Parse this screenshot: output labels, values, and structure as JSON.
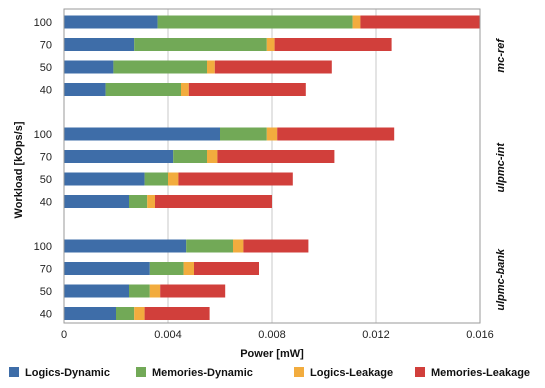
{
  "chart_data": {
    "type": "bar",
    "orientation": "horizontal",
    "stacked": true,
    "title": "",
    "xlabel": "Power [mW]",
    "ylabel": "Workload [kOps/s]",
    "xlim": [
      0,
      0.016
    ],
    "xticks": [
      "0",
      "0.004",
      "0.008",
      "0.012",
      "0.016"
    ],
    "xtick_values": [
      0,
      0.004,
      0.008,
      0.012,
      0.016
    ],
    "grid": "vertical",
    "legend_position": "bottom",
    "series": [
      {
        "name": "Logics-Dynamic",
        "color": "#3e6da8"
      },
      {
        "name": "Memories-Dynamic",
        "color": "#72a957"
      },
      {
        "name": "Logics-Leakage",
        "color": "#f2ac3e"
      },
      {
        "name": "Memories-Leakage",
        "color": "#d13f3b"
      }
    ],
    "groups": [
      {
        "name": "mc-ref",
        "bars": [
          {
            "workload": "100",
            "values": [
              0.0036,
              0.0075,
              0.0003,
              0.0046
            ]
          },
          {
            "workload": "70",
            "values": [
              0.0027,
              0.0051,
              0.0003,
              0.0045
            ]
          },
          {
            "workload": "50",
            "values": [
              0.0019,
              0.0036,
              0.0003,
              0.0045
            ]
          },
          {
            "workload": "40",
            "values": [
              0.0016,
              0.0029,
              0.0003,
              0.0045
            ]
          }
        ]
      },
      {
        "name": "ulpmc-int",
        "bars": [
          {
            "workload": "100",
            "values": [
              0.006,
              0.0018,
              0.0004,
              0.0045
            ]
          },
          {
            "workload": "70",
            "values": [
              0.0042,
              0.0013,
              0.0004,
              0.0045
            ]
          },
          {
            "workload": "50",
            "values": [
              0.0031,
              0.0009,
              0.0004,
              0.0044
            ]
          },
          {
            "workload": "40",
            "values": [
              0.0025,
              0.0007,
              0.0003,
              0.0045
            ]
          }
        ]
      },
      {
        "name": "ulpmc-bank",
        "bars": [
          {
            "workload": "100",
            "values": [
              0.0047,
              0.0018,
              0.0004,
              0.0025
            ]
          },
          {
            "workload": "70",
            "values": [
              0.0033,
              0.0013,
              0.0004,
              0.0025
            ]
          },
          {
            "workload": "50",
            "values": [
              0.0025,
              0.0008,
              0.0004,
              0.0025
            ]
          },
          {
            "workload": "40",
            "values": [
              0.002,
              0.0007,
              0.0004,
              0.0025
            ]
          }
        ]
      }
    ]
  }
}
